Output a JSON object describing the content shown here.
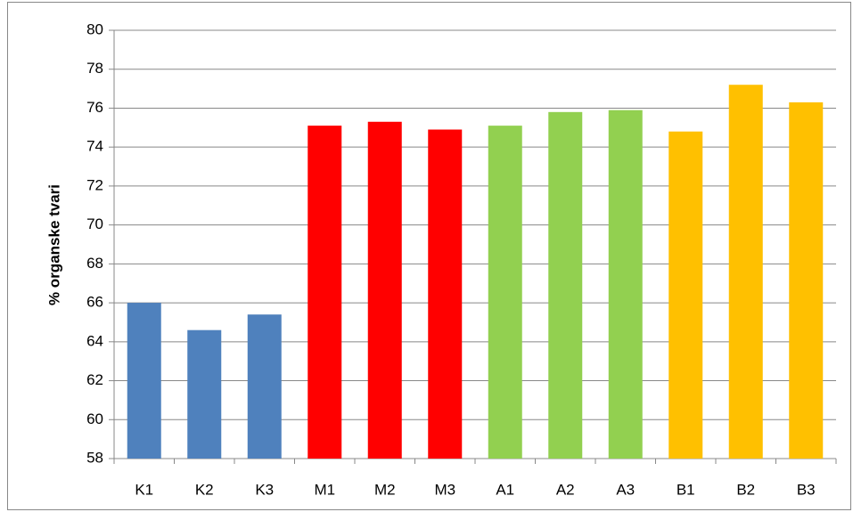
{
  "chart_data": {
    "type": "bar",
    "y_label": "% organske tvari",
    "categories": [
      "K1",
      "K2",
      "K3",
      "M1",
      "M2",
      "M3",
      "A1",
      "A2",
      "A3",
      "B1",
      "B2",
      "B3"
    ],
    "values": [
      66.0,
      64.6,
      65.4,
      75.1,
      75.3,
      74.9,
      75.1,
      75.8,
      75.9,
      74.8,
      77.2,
      76.3
    ],
    "colors": [
      "#4f81bd",
      "#4f81bd",
      "#4f81bd",
      "#ff0000",
      "#ff0000",
      "#ff0000",
      "#92d050",
      "#92d050",
      "#92d050",
      "#ffc000",
      "#ffc000",
      "#ffc000"
    ],
    "ylim": [
      58,
      80
    ],
    "yticks": [
      58,
      60,
      62,
      64,
      66,
      68,
      70,
      72,
      74,
      76,
      78,
      80
    ],
    "grid": true
  }
}
